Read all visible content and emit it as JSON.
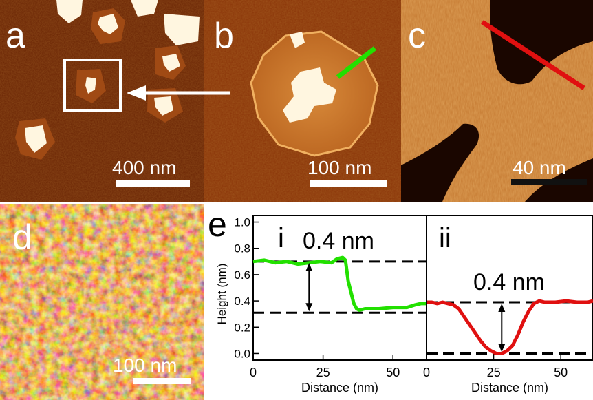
{
  "figure": {
    "panels": {
      "a": {
        "label": "a",
        "scale_bar": "400 nm"
      },
      "b": {
        "label": "b",
        "scale_bar": "100 nm"
      },
      "c": {
        "label": "c",
        "scale_bar": "40 nm"
      },
      "d": {
        "label": "d",
        "scale_bar": "100 nm"
      },
      "e": {
        "label": "e"
      }
    },
    "colors": {
      "afm_dark": "#3a1200",
      "afm_mid": "#a0440c",
      "afm_light": "#e8a050",
      "afm_bright": "#fff4d8",
      "line_profile_b": "#22e000",
      "line_profile_c": "#e01010",
      "arrow": "#ffffff"
    }
  },
  "chart_data": {
    "type": "line",
    "ylabel": "Height (nm)",
    "ylim": [
      -0.05,
      1.05
    ],
    "yticks": [
      "0.0",
      "0.2",
      "0.4",
      "0.6",
      "0.8",
      "1.0"
    ],
    "ytick_values": [
      0.0,
      0.2,
      0.4,
      0.6,
      0.8,
      1.0
    ],
    "subplots": [
      {
        "label": "i",
        "annotation": "0.4 nm",
        "xlabel": "Distance (nm)",
        "xlim": [
          0,
          62
        ],
        "xticks": [
          "0",
          "25",
          "50"
        ],
        "xtick_values": [
          0,
          25,
          50
        ],
        "dashed_levels": [
          0.7,
          0.31
        ],
        "color": "#22e000",
        "series": {
          "x": [
            0,
            4,
            8,
            12,
            16,
            20,
            24,
            28,
            30,
            32,
            33,
            34,
            36,
            37,
            38,
            40,
            45,
            50,
            55,
            58,
            60,
            62
          ],
          "y": [
            0.7,
            0.71,
            0.69,
            0.7,
            0.68,
            0.69,
            0.7,
            0.69,
            0.72,
            0.73,
            0.71,
            0.55,
            0.38,
            0.34,
            0.33,
            0.34,
            0.34,
            0.35,
            0.35,
            0.37,
            0.38,
            0.38
          ]
        }
      },
      {
        "label": "ii",
        "annotation": "0.4 nm",
        "xlabel": "Distance (nm)",
        "xlim": [
          0,
          62
        ],
        "xticks": [
          "0",
          "25",
          "50"
        ],
        "xtick_values": [
          0,
          25,
          50
        ],
        "dashed_levels": [
          0.39,
          0.0
        ],
        "color": "#e01010",
        "series": {
          "x": [
            0,
            2,
            4,
            6,
            8,
            10,
            12,
            14,
            16,
            18,
            20,
            22,
            24,
            25,
            26,
            28,
            30,
            32,
            34,
            36,
            38,
            40,
            42,
            44,
            48,
            52,
            56,
            60,
            62
          ],
          "y": [
            0.39,
            0.39,
            0.38,
            0.39,
            0.38,
            0.37,
            0.34,
            0.28,
            0.22,
            0.16,
            0.1,
            0.05,
            0.02,
            0.01,
            0.0,
            0.0,
            0.02,
            0.06,
            0.14,
            0.24,
            0.32,
            0.38,
            0.4,
            0.39,
            0.39,
            0.4,
            0.39,
            0.39,
            0.4
          ]
        }
      }
    ]
  }
}
